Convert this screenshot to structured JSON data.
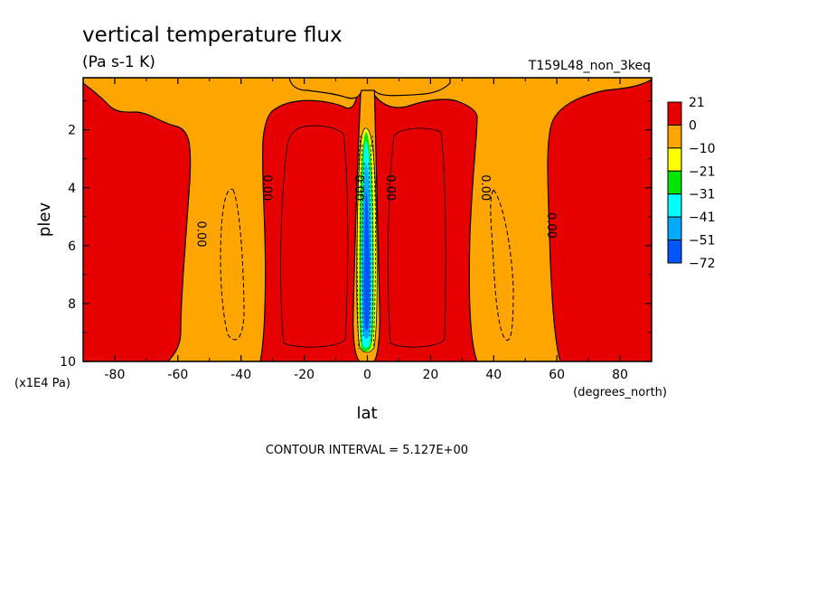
{
  "chart_data": {
    "type": "heatmap",
    "title": "vertical temperature flux",
    "units": "(Pa s-1 K)",
    "run_label": "T159L48_non_3keq",
    "xlabel": "lat",
    "xunits": "(degrees_north)",
    "ylabel": "plev",
    "yunits": "(x1E4 Pa)",
    "xlim": [
      -90,
      90
    ],
    "ylim": [
      10,
      0.2
    ],
    "x_ticks": [
      "-80",
      "-60",
      "-40",
      "-20",
      "0",
      "20",
      "40",
      "60",
      "80"
    ],
    "x_tick_values": [
      -80,
      -60,
      -40,
      -20,
      0,
      20,
      40,
      60,
      80
    ],
    "y_ticks": [
      "2",
      "4",
      "6",
      "8",
      "10"
    ],
    "y_tick_values": [
      2,
      4,
      6,
      8,
      10
    ],
    "colorbar": {
      "labels": [
        "21",
        "0",
        "−10",
        "−21",
        "−31",
        "−41",
        "−51",
        "−72"
      ],
      "colors": [
        "#e60000",
        "#ffa500",
        "#ffff00",
        "#00e600",
        "#00ffff",
        "#00aaff",
        "#0055ff"
      ]
    },
    "contour_labels": [
      {
        "text": "0.00",
        "lat": -55,
        "plev": 5.6
      },
      {
        "text": "0.00",
        "lat": -34,
        "plev": 4.0
      },
      {
        "text": "0.00",
        "lat": -5,
        "plev": 4.0
      },
      {
        "text": "0.00",
        "lat": 5,
        "plev": 4.0
      },
      {
        "text": "0.00",
        "lat": 35,
        "plev": 4.0
      },
      {
        "text": "0.00",
        "lat": 56,
        "plev": 5.3
      }
    ],
    "footer": "CONTOUR INTERVAL = 5.127E+00"
  }
}
